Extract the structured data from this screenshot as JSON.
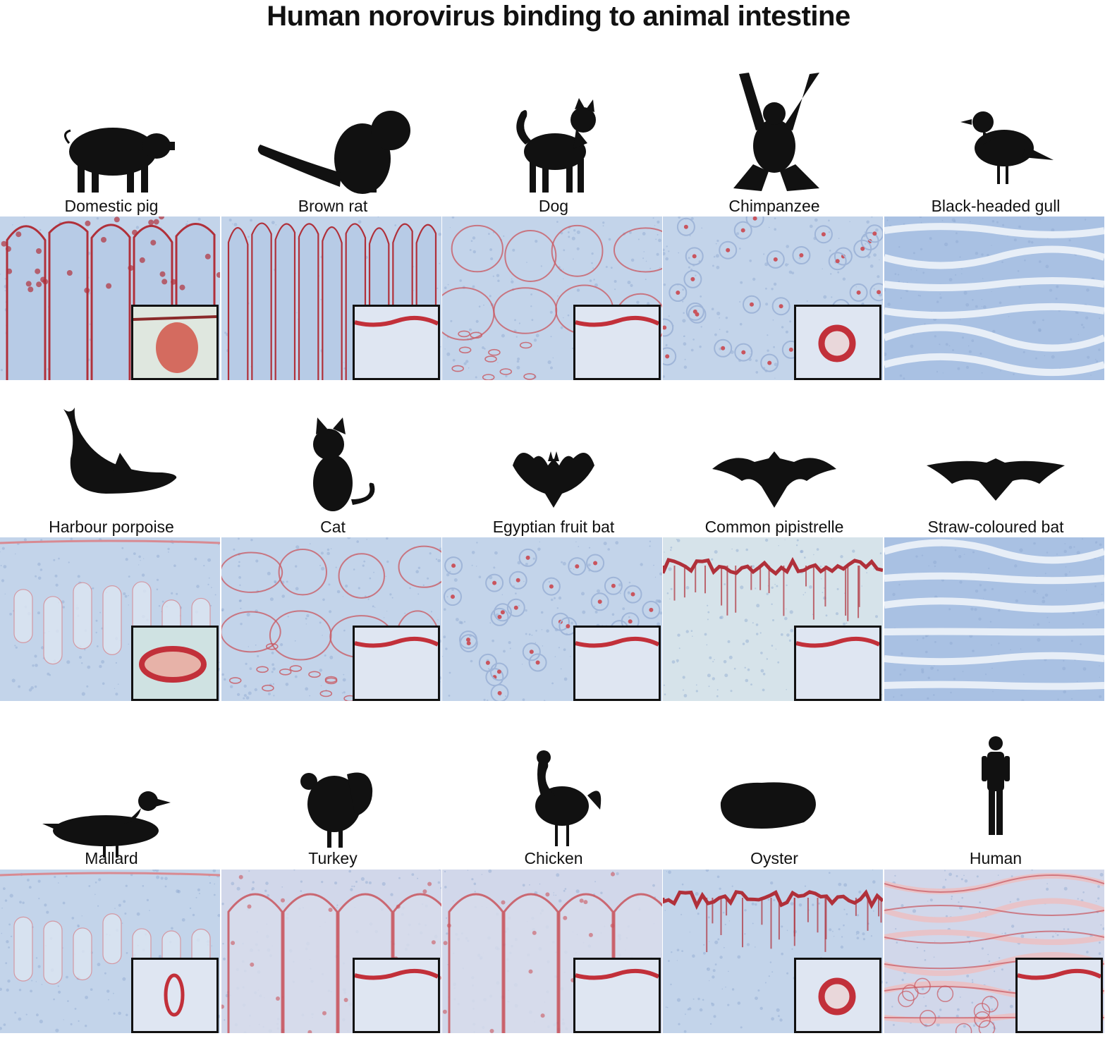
{
  "title": "Human norovirus binding to animal intestine",
  "panels": [
    {
      "label": "Domestic pig",
      "silhouette": "pig-icon",
      "stain": "strong",
      "tissue": "villi",
      "inset": "blob"
    },
    {
      "label": "Brown rat",
      "silhouette": "rat-icon",
      "stain": "strong",
      "tissue": "villi-tall",
      "inset": "line"
    },
    {
      "label": "Dog",
      "silhouette": "dog-icon",
      "stain": "moderate",
      "tissue": "crypts",
      "inset": "line"
    },
    {
      "label": "Chimpanzee",
      "silhouette": "chimpanzee-icon",
      "stain": "moderate",
      "tissue": "dots",
      "inset": "ring"
    },
    {
      "label": "Black-headed gull",
      "silhouette": "gull-icon",
      "stain": "none",
      "tissue": "folds",
      "inset": ""
    },
    {
      "label": "Harbour porpoise",
      "silhouette": "porpoise-icon",
      "stain": "weak",
      "tissue": "glands",
      "inset": "blob-teal"
    },
    {
      "label": "Cat",
      "silhouette": "cat-icon",
      "stain": "moderate",
      "tissue": "crypts",
      "inset": "line"
    },
    {
      "label": "Egyptian fruit bat",
      "silhouette": "fruit-bat-icon",
      "stain": "moderate",
      "tissue": "dots",
      "inset": "line"
    },
    {
      "label": "Common pipistrelle",
      "silhouette": "pipistrelle-icon",
      "stain": "strong",
      "tissue": "edge",
      "inset": "line"
    },
    {
      "label": "Straw-coloured bat",
      "silhouette": "straw-bat-icon",
      "stain": "none",
      "tissue": "folds",
      "inset": ""
    },
    {
      "label": "Mallard",
      "silhouette": "mallard-icon",
      "stain": "weak",
      "tissue": "glands",
      "inset": "ring-small"
    },
    {
      "label": "Turkey",
      "silhouette": "turkey-icon",
      "stain": "moderate",
      "tissue": "villi-wavy",
      "inset": "line"
    },
    {
      "label": "Chicken",
      "silhouette": "chicken-icon",
      "stain": "moderate",
      "tissue": "villi-wavy",
      "inset": "line"
    },
    {
      "label": "Oyster",
      "silhouette": "oyster-icon",
      "stain": "strong",
      "tissue": "edge",
      "inset": "ring"
    },
    {
      "label": "Human",
      "silhouette": "human-icon",
      "stain": "moderate",
      "tissue": "folds-red",
      "inset": "line"
    }
  ]
}
